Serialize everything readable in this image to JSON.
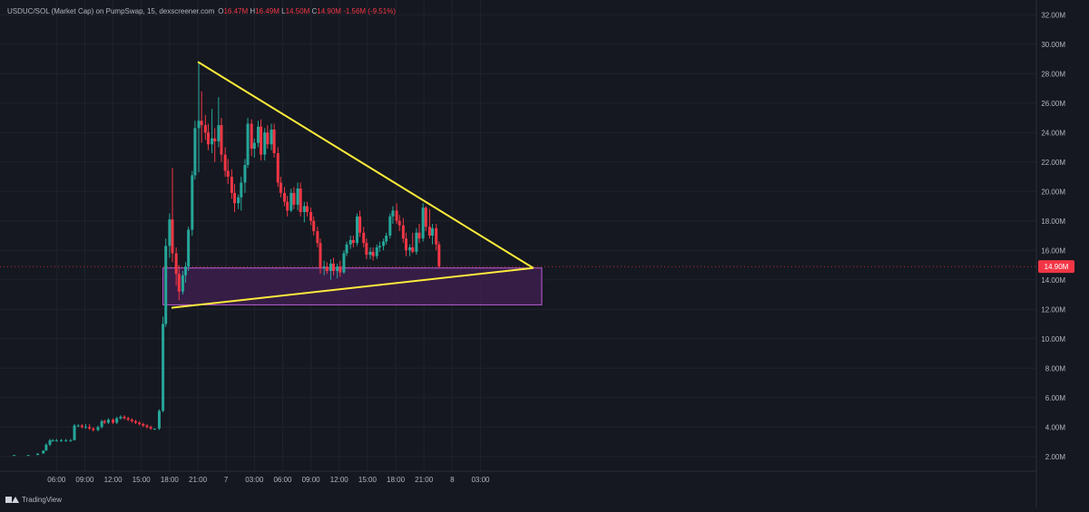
{
  "header": {
    "symbol": "USDUC/SOL (Market Cap) on PumpSwap, 15, dexscreener.com",
    "open_label": "O",
    "open": "16.47M",
    "high_label": "H",
    "high": "16.49M",
    "low_label": "L",
    "low": "14.50M",
    "close_label": "C",
    "close": "14.90M",
    "change": "-1.56M (-9.51%)"
  },
  "footer": {
    "brand": "TradingView"
  },
  "colors": {
    "background": "#151820",
    "up": "#26a69a",
    "down": "#f23645",
    "trendline": "#ffeb3b",
    "zone_fill": "#3b1f4d",
    "zone_border": "#c05fd6",
    "price_tag": "#f23645"
  },
  "chart_data": {
    "type": "candlestick",
    "y_unit": "M",
    "ylim": [
      1.0,
      33.0
    ],
    "y_ticks": [
      2,
      4,
      6,
      8,
      10,
      12,
      14,
      16,
      18,
      20,
      22,
      24,
      26,
      28,
      30,
      32
    ],
    "y_tick_labels": [
      "2.00M",
      "4.00M",
      "6.00M",
      "8.00M",
      "10.00M",
      "12.00M",
      "14.00M",
      "16.00M",
      "18.00M",
      "20.00M",
      "22.00M",
      "24.00M",
      "26.00M",
      "28.00M",
      "30.00M",
      "32.00M"
    ],
    "x_range_hours": [
      0,
      110
    ],
    "x_ticks": [
      {
        "hour": 6,
        "label": "06:00"
      },
      {
        "hour": 9,
        "label": "09:00"
      },
      {
        "hour": 12,
        "label": "12:00"
      },
      {
        "hour": 15,
        "label": "15:00"
      },
      {
        "hour": 18,
        "label": "18:00"
      },
      {
        "hour": 21,
        "label": "21:00"
      },
      {
        "hour": 24,
        "label": "7"
      },
      {
        "hour": 27,
        "label": "03:00"
      },
      {
        "hour": 30,
        "label": "06:00"
      },
      {
        "hour": 33,
        "label": "09:00"
      },
      {
        "hour": 36,
        "label": "12:00"
      },
      {
        "hour": 39,
        "label": "15:00"
      },
      {
        "hour": 42,
        "label": "18:00"
      },
      {
        "hour": 45,
        "label": "21:00"
      },
      {
        "hour": 48,
        "label": "8"
      },
      {
        "hour": 51,
        "label": "03:00"
      }
    ],
    "current_price": 14.9,
    "current_price_label": "14.90M",
    "candles": [
      [
        1.5,
        2.1,
        2.1,
        2.1,
        2.1
      ],
      [
        3.0,
        2.1,
        2.1,
        2.1,
        2.1
      ],
      [
        4.0,
        2.1,
        2.2,
        2.1,
        2.2
      ],
      [
        4.6,
        2.2,
        2.4,
        2.2,
        2.4
      ],
      [
        4.9,
        2.4,
        2.9,
        2.4,
        2.8
      ],
      [
        5.3,
        2.8,
        3.2,
        2.7,
        3.1
      ],
      [
        5.6,
        3.1,
        3.2,
        3.0,
        3.1
      ],
      [
        6.0,
        3.1,
        3.2,
        3.0,
        3.1
      ],
      [
        6.5,
        3.1,
        3.2,
        3.0,
        3.1
      ],
      [
        7.0,
        3.1,
        3.2,
        3.0,
        3.1
      ],
      [
        7.5,
        3.1,
        3.2,
        3.0,
        3.1
      ],
      [
        7.9,
        3.1,
        4.2,
        3.1,
        4.1
      ],
      [
        8.3,
        4.1,
        4.2,
        4.0,
        4.1
      ],
      [
        8.7,
        4.1,
        4.2,
        3.9,
        4.0
      ],
      [
        9.1,
        4.0,
        4.2,
        3.9,
        4.0
      ],
      [
        9.5,
        4.0,
        4.2,
        3.8,
        3.9
      ],
      [
        9.9,
        3.9,
        4.0,
        3.7,
        3.8
      ],
      [
        10.4,
        3.8,
        4.1,
        3.7,
        4.0
      ],
      [
        10.8,
        4.0,
        4.5,
        3.9,
        4.4
      ],
      [
        11.1,
        4.4,
        4.5,
        4.2,
        4.3
      ],
      [
        11.5,
        4.3,
        4.6,
        4.2,
        4.5
      ],
      [
        12.0,
        4.5,
        4.6,
        4.2,
        4.3
      ],
      [
        12.4,
        4.3,
        4.7,
        4.2,
        4.6
      ],
      [
        12.8,
        4.6,
        4.8,
        4.5,
        4.7
      ],
      [
        13.2,
        4.7,
        4.8,
        4.5,
        4.6
      ],
      [
        13.6,
        4.6,
        4.7,
        4.4,
        4.5
      ],
      [
        14.0,
        4.5,
        4.6,
        4.3,
        4.4
      ],
      [
        14.4,
        4.4,
        4.5,
        4.2,
        4.3
      ],
      [
        14.8,
        4.3,
        4.4,
        4.1,
        4.2
      ],
      [
        15.2,
        4.2,
        4.3,
        4.0,
        4.1
      ],
      [
        15.6,
        4.1,
        4.2,
        3.9,
        4.0
      ],
      [
        16.0,
        4.0,
        4.1,
        3.8,
        3.9
      ],
      [
        16.4,
        3.9,
        3.9,
        3.8,
        3.9
      ],
      [
        16.9,
        3.9,
        5.2,
        3.8,
        5.1
      ],
      [
        17.3,
        5.1,
        11.5,
        5.0,
        11.0
      ],
      [
        17.6,
        11.0,
        16.8,
        10.8,
        16.3
      ],
      [
        18.0,
        16.3,
        18.5,
        15.5,
        18.1
      ],
      [
        18.3,
        18.1,
        21.6,
        15.2,
        15.8
      ],
      [
        18.7,
        15.8,
        16.2,
        13.6,
        14.4
      ],
      [
        19.0,
        14.4,
        15.0,
        12.6,
        13.2
      ],
      [
        19.4,
        13.2,
        14.6,
        13.0,
        14.3
      ],
      [
        19.7,
        14.3,
        15.2,
        13.8,
        14.9
      ],
      [
        20.0,
        14.9,
        17.6,
        14.6,
        17.4
      ],
      [
        20.4,
        17.4,
        21.4,
        17.0,
        21.1
      ],
      [
        20.7,
        21.1,
        24.8,
        20.8,
        24.3
      ],
      [
        21.1,
        24.3,
        28.7,
        21.3,
        24.8
      ],
      [
        21.4,
        24.8,
        26.8,
        23.3,
        24.5
      ],
      [
        21.8,
        24.5,
        25.2,
        23.5,
        24.0
      ],
      [
        22.1,
        24.0,
        24.6,
        22.8,
        23.2
      ],
      [
        22.5,
        23.2,
        25.6,
        22.6,
        23.6
      ],
      [
        22.8,
        23.6,
        24.3,
        22.0,
        23.4
      ],
      [
        23.2,
        23.4,
        26.4,
        23.0,
        24.5
      ],
      [
        23.5,
        24.5,
        25.0,
        22.0,
        22.5
      ],
      [
        23.9,
        22.5,
        23.0,
        21.0,
        21.4
      ],
      [
        24.2,
        21.4,
        22.2,
        20.5,
        21.0
      ],
      [
        24.6,
        21.0,
        21.5,
        19.5,
        19.9
      ],
      [
        24.9,
        19.9,
        20.5,
        18.6,
        19.2
      ],
      [
        25.3,
        19.2,
        19.8,
        18.8,
        19.6
      ],
      [
        25.6,
        19.6,
        21.0,
        18.7,
        20.6
      ],
      [
        26.0,
        20.6,
        22.2,
        19.9,
        21.8
      ],
      [
        26.3,
        21.8,
        25.0,
        21.6,
        24.6
      ],
      [
        26.7,
        24.6,
        24.9,
        22.4,
        22.9
      ],
      [
        27.0,
        22.9,
        23.6,
        22.3,
        23.3
      ],
      [
        27.4,
        23.3,
        24.8,
        23.0,
        24.4
      ],
      [
        27.7,
        24.4,
        24.9,
        22.1,
        22.5
      ],
      [
        28.1,
        22.5,
        24.3,
        22.1,
        24.0
      ],
      [
        28.4,
        24.0,
        24.5,
        22.9,
        23.2
      ],
      [
        28.8,
        23.2,
        24.6,
        22.8,
        24.2
      ],
      [
        29.1,
        24.2,
        24.6,
        22.3,
        22.6
      ],
      [
        29.5,
        22.6,
        23.0,
        20.3,
        20.6
      ],
      [
        29.8,
        20.6,
        21.0,
        19.6,
        19.9
      ],
      [
        30.2,
        19.9,
        20.3,
        19.0,
        19.3
      ],
      [
        30.5,
        19.3,
        19.7,
        18.3,
        18.7
      ],
      [
        30.9,
        18.7,
        20.2,
        18.6,
        19.9
      ],
      [
        31.2,
        19.9,
        20.3,
        18.8,
        19.1
      ],
      [
        31.6,
        19.1,
        20.6,
        18.7,
        20.2
      ],
      [
        31.9,
        20.2,
        20.6,
        18.3,
        18.6
      ],
      [
        32.3,
        18.6,
        19.3,
        17.9,
        19.0
      ],
      [
        32.6,
        19.0,
        19.3,
        18.3,
        18.6
      ],
      [
        33.0,
        18.6,
        18.9,
        17.7,
        18.0
      ],
      [
        33.3,
        18.0,
        18.3,
        17.0,
        17.3
      ],
      [
        33.7,
        17.3,
        17.6,
        16.2,
        16.5
      ],
      [
        34.0,
        16.5,
        16.8,
        14.4,
        14.8
      ],
      [
        34.4,
        14.8,
        15.3,
        14.3,
        14.9
      ],
      [
        34.7,
        14.9,
        15.2,
        14.4,
        14.6
      ],
      [
        35.1,
        14.6,
        15.4,
        14.0,
        15.1
      ],
      [
        35.4,
        15.1,
        15.5,
        14.3,
        14.6
      ],
      [
        35.8,
        14.6,
        15.1,
        14.1,
        14.9
      ],
      [
        36.1,
        14.9,
        15.3,
        14.2,
        14.5
      ],
      [
        36.5,
        14.5,
        16.0,
        14.4,
        15.8
      ],
      [
        36.8,
        15.8,
        16.6,
        15.6,
        16.4
      ],
      [
        37.2,
        16.4,
        17.0,
        16.1,
        16.7
      ],
      [
        37.5,
        16.7,
        17.0,
        16.2,
        16.5
      ],
      [
        37.9,
        16.5,
        18.5,
        16.3,
        18.3
      ],
      [
        38.2,
        18.3,
        18.7,
        16.9,
        17.2
      ],
      [
        38.6,
        17.2,
        17.6,
        16.2,
        16.5
      ],
      [
        38.9,
        16.5,
        16.8,
        15.4,
        15.7
      ],
      [
        39.3,
        15.7,
        16.2,
        15.4,
        15.9
      ],
      [
        39.6,
        15.9,
        16.2,
        15.3,
        15.6
      ],
      [
        40.0,
        15.6,
        16.4,
        15.4,
        16.2
      ],
      [
        40.3,
        16.2,
        16.6,
        15.9,
        16.3
      ],
      [
        40.7,
        16.3,
        16.8,
        16.0,
        16.6
      ],
      [
        41.0,
        16.6,
        17.2,
        16.4,
        17.0
      ],
      [
        41.4,
        17.0,
        18.5,
        16.8,
        18.3
      ],
      [
        41.7,
        18.3,
        19.0,
        17.8,
        18.7
      ],
      [
        42.1,
        18.7,
        19.2,
        17.8,
        18.0
      ],
      [
        42.4,
        18.0,
        18.4,
        17.3,
        17.7
      ],
      [
        42.8,
        17.7,
        18.2,
        16.5,
        16.8
      ],
      [
        43.1,
        16.8,
        17.2,
        15.6,
        16.0
      ],
      [
        43.5,
        16.0,
        16.4,
        15.6,
        16.2
      ],
      [
        43.8,
        16.2,
        17.2,
        15.8,
        15.9
      ],
      [
        44.2,
        15.9,
        17.5,
        15.7,
        17.2
      ],
      [
        44.5,
        17.2,
        17.8,
        16.5,
        16.8
      ],
      [
        44.9,
        16.8,
        19.2,
        16.6,
        18.9
      ],
      [
        45.2,
        18.9,
        19.0,
        17.3,
        17.6
      ],
      [
        45.6,
        17.6,
        18.8,
        16.8,
        17.0
      ],
      [
        45.9,
        17.0,
        17.8,
        16.4,
        17.5
      ],
      [
        46.3,
        17.5,
        17.8,
        16.0,
        16.4
      ],
      [
        46.6,
        16.4,
        16.6,
        14.8,
        14.9
      ]
    ],
    "drawings": {
      "upper_trendline": {
        "from": [
          21.0,
          28.8
        ],
        "to": [
          56.6,
          14.8
        ]
      },
      "lower_trendline": {
        "from": [
          18.2,
          12.1
        ],
        "to": [
          56.6,
          14.8
        ]
      },
      "zone": {
        "x": [
          17.3,
          57.5
        ],
        "y": [
          12.3,
          14.8
        ]
      }
    }
  }
}
